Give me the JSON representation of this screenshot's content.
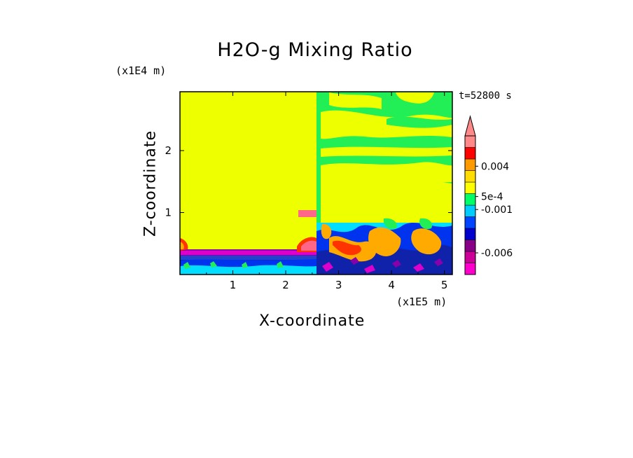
{
  "chart_data": {
    "type": "heatmap",
    "title": "H2O-g Mixing Ratio",
    "xlabel": "X-coordinate",
    "ylabel": "Z-coordinate",
    "x_unit": "(x1E5 m)",
    "z_unit": "(x1E4 m)",
    "time_label": "t=52800 s",
    "xlim": [
      0,
      5.15
    ],
    "ylim": [
      0,
      2.95
    ],
    "x_ticks": [
      "1",
      "2",
      "3",
      "4",
      "5"
    ],
    "x_tick_values": [
      1,
      2,
      3,
      4,
      5
    ],
    "y_ticks": [
      "1",
      "2"
    ],
    "y_tick_values": [
      1,
      2
    ],
    "colorbar_labels": [
      {
        "text": "0.004",
        "value": 0.004
      },
      {
        "text": "5e-4",
        "value": 0.0005
      },
      {
        "text": "-0.001",
        "value": -0.001
      },
      {
        "text": "-0.006",
        "value": -0.006
      }
    ],
    "colorbar_colors": [
      "#ff00cc",
      "#cc0099",
      "#880088",
      "#0000cc",
      "#0044ff",
      "#00ccff",
      "#00ff66",
      "#ffff00",
      "#ffdd00",
      "#ff9900",
      "#ff0000",
      "#ff8888"
    ],
    "field_colors": {
      "background_yellow": "#eeff00",
      "green": "#22ee55",
      "cyan": "#00ddff",
      "blue": "#0033ee",
      "navy": "#1122aa",
      "orange": "#ffaa00",
      "red": "#ff3300",
      "pink": "#ff6688",
      "magenta": "#dd00cc",
      "purple": "#8800aa"
    }
  }
}
